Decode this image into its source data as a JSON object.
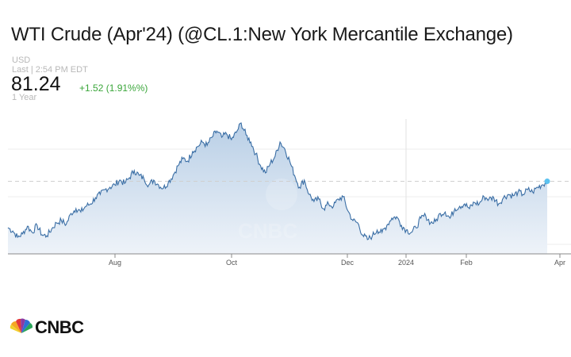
{
  "header": {
    "title": "WTI Crude (Apr'24) (@CL.1:New York Mercantile Exchange)",
    "currency": "USD",
    "last_updated": "Last | 2:54 PM EDT",
    "price": "81.24",
    "change": "+1.52 (1.91%%)",
    "period": "1 Year"
  },
  "brand": {
    "name": "CNBC"
  },
  "colors": {
    "line": "#3a6ea5",
    "fill_top": "#b9cfe6",
    "fill_bottom": "#eef3f9",
    "accent": "#5bc2f0",
    "change": "#3aa63a"
  },
  "chart_data": {
    "type": "area",
    "title": "WTI Crude (Apr'24) (@CL.1:New York Mercantile Exchange)",
    "xlabel": "",
    "ylabel": "",
    "x_tick_labels": [
      "Aug",
      "Oct",
      "Dec",
      "2024",
      "Feb",
      "Apr"
    ],
    "ylim": [
      66,
      96
    ],
    "grid": true,
    "reference_line": 81.24,
    "series": [
      {
        "values": [
          71.5,
          70.8,
          69.5,
          70.2,
          71.8,
          70.5,
          72.0,
          70.0,
          69.8,
          71.2,
          72.5,
          73.0,
          72.2,
          74.5,
          75.5,
          74.8,
          76.0,
          76.5,
          77.8,
          78.5,
          79.5,
          80.0,
          80.5,
          81.5,
          80.8,
          82.0,
          83.5,
          82.5,
          81.8,
          80.5,
          81.5,
          80.5,
          79.8,
          81.0,
          82.5,
          84.5,
          86.0,
          85.5,
          87.5,
          88.5,
          89.5,
          88.8,
          90.5,
          91.8,
          90.5,
          91.2,
          90.0,
          91.5,
          93.5,
          91.0,
          89.5,
          87.0,
          84.5,
          83.0,
          85.0,
          86.5,
          89.5,
          88.0,
          85.5,
          82.5,
          80.0,
          81.5,
          78.5,
          77.0,
          77.5,
          75.5,
          76.5,
          76.0,
          77.5,
          78.0,
          75.0,
          73.0,
          72.5,
          70.0,
          69.0,
          69.8,
          71.0,
          70.5,
          72.0,
          73.5,
          73.8,
          72.0,
          71.0,
          70.5,
          71.5,
          73.5,
          74.0,
          72.5,
          72.8,
          74.5,
          74.8,
          73.5,
          75.5,
          76.0,
          76.5,
          75.5,
          76.8,
          76.5,
          78.0,
          77.5,
          77.8,
          76.5,
          77.8,
          78.5,
          78.2,
          79.0,
          78.5,
          79.5,
          79.0,
          80.0,
          80.5,
          81.24
        ]
      }
    ]
  }
}
